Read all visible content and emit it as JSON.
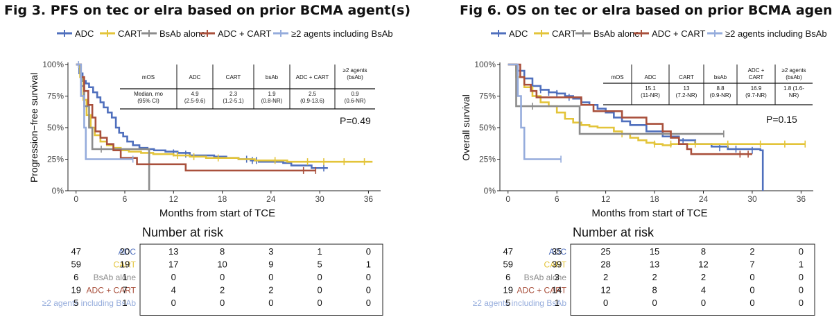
{
  "figures": [
    {
      "title": "Fig 3. PFS on tec or elra based on prior BCMA agent(s)"
    },
    {
      "title": "Fig 6. OS on tec or elra based on prior BCMA agent(s)"
    }
  ],
  "colors": {
    "ADC": "#4f6fbd",
    "CART": "#e3c43a",
    "BsAb alone": "#8c8c8c",
    "ADC + CART": "#a9503c",
    "agents2": "#95acdc"
  },
  "chart_data": [
    {
      "type": "line",
      "subtype": "kaplan-meier",
      "title": "Fig 3. PFS on tec or elra based on prior BCMA agent(s)",
      "xlabel": "Months from start of TCE",
      "ylabel": "Progression−free survival",
      "xlim": [
        -1,
        37.5
      ],
      "ylim": [
        0,
        1
      ],
      "xticks": [
        0,
        6,
        12,
        18,
        24,
        30,
        36
      ],
      "yticks": [
        "0%",
        "25%",
        "50%",
        "75%",
        "100%"
      ],
      "legend": [
        "ADC",
        "CART",
        "BsAb alone",
        "ADC + CART",
        "≥2 agents including BsAb"
      ],
      "legend_position": "top",
      "pvalue": "P=0.49",
      "inset_table": {
        "header": [
          "mOS",
          "ADC",
          "CART",
          "bsAb",
          "ADC + CART",
          "≥2 agents\n(bsAb)"
        ],
        "row": [
          "Median, mo\n(95% CI)",
          "4.9\n(2.5-9.6)",
          "2.3\n(1.2-5.1)",
          "1.9\n(0.8-NR)",
          "2.5\n(0.9-13.6)",
          "0.9\n(0.6-NR)"
        ]
      },
      "series": [
        {
          "name": "ADC",
          "key": "ADC",
          "points": [
            [
              0,
              1
            ],
            [
              0.4,
              0.93
            ],
            [
              0.8,
              0.87
            ],
            [
              1.2,
              0.85
            ],
            [
              1.6,
              0.82
            ],
            [
              2.1,
              0.78
            ],
            [
              2.6,
              0.74
            ],
            [
              3,
              0.7
            ],
            [
              3.4,
              0.66
            ],
            [
              3.9,
              0.62
            ],
            [
              4.4,
              0.58
            ],
            [
              4.9,
              0.5
            ],
            [
              5.3,
              0.46
            ],
            [
              5.8,
              0.43
            ],
            [
              6.3,
              0.39
            ],
            [
              7,
              0.36
            ],
            [
              7.8,
              0.34
            ],
            [
              8.8,
              0.33
            ],
            [
              9.6,
              0.32
            ],
            [
              11,
              0.31
            ],
            [
              12.5,
              0.3
            ],
            [
              14,
              0.28
            ],
            [
              17,
              0.27
            ],
            [
              18.5,
              0.26
            ],
            [
              20,
              0.25
            ],
            [
              21.5,
              0.24
            ],
            [
              22.5,
              0.23
            ],
            [
              25.5,
              0.22
            ],
            [
              26.5,
              0.2
            ],
            [
              29,
              0.18
            ],
            [
              31,
              0.18
            ]
          ],
          "censors": [
            [
              12,
              0.3
            ],
            [
              13.5,
              0.29
            ],
            [
              21,
              0.25
            ],
            [
              21.7,
              0.24
            ],
            [
              22.2,
              0.24
            ],
            [
              30.5,
              0.18
            ]
          ]
        },
        {
          "name": "CART",
          "key": "CART",
          "points": [
            [
              0,
              1
            ],
            [
              0.5,
              0.9
            ],
            [
              0.9,
              0.72
            ],
            [
              1.3,
              0.6
            ],
            [
              1.8,
              0.5
            ],
            [
              2.3,
              0.44
            ],
            [
              3,
              0.39
            ],
            [
              3.8,
              0.36
            ],
            [
              4.6,
              0.34
            ],
            [
              5.5,
              0.32
            ],
            [
              6.5,
              0.31
            ],
            [
              8,
              0.3
            ],
            [
              9.5,
              0.29
            ],
            [
              12,
              0.28
            ],
            [
              14,
              0.27
            ],
            [
              16,
              0.26
            ],
            [
              18,
              0.26
            ],
            [
              20,
              0.25
            ],
            [
              22,
              0.24
            ],
            [
              24,
              0.24
            ],
            [
              26,
              0.23
            ],
            [
              36.5,
              0.23
            ]
          ],
          "censors": [
            [
              12.5,
              0.28
            ],
            [
              14.5,
              0.27
            ],
            [
              17.5,
              0.26
            ],
            [
              24.5,
              0.24
            ],
            [
              28.5,
              0.23
            ],
            [
              30.5,
              0.23
            ],
            [
              33,
              0.23
            ],
            [
              35.5,
              0.23
            ]
          ]
        },
        {
          "name": "BsAb alone",
          "key": "BsAb alone",
          "points": [
            [
              0,
              1
            ],
            [
              0.6,
              0.83
            ],
            [
              1,
              0.67
            ],
            [
              1.6,
              0.5
            ],
            [
              2,
              0.33
            ],
            [
              8.8,
              0.33
            ],
            [
              9,
              0
            ]
          ],
          "censors": [
            [
              3.1,
              0.33
            ]
          ]
        },
        {
          "name": "ADC + CART",
          "key": "ADC + CART",
          "points": [
            [
              0,
              1
            ],
            [
              0.6,
              0.9
            ],
            [
              1,
              0.79
            ],
            [
              1.5,
              0.68
            ],
            [
              2,
              0.58
            ],
            [
              2.4,
              0.47
            ],
            [
              3,
              0.42
            ],
            [
              3.8,
              0.37
            ],
            [
              4.6,
              0.32
            ],
            [
              5.5,
              0.26
            ],
            [
              7.5,
              0.21
            ],
            [
              9.5,
              0.21
            ],
            [
              13.5,
              0.16
            ],
            [
              29.5,
              0.16
            ]
          ],
          "censors": [
            [
              28,
              0.16
            ],
            [
              29.5,
              0.16
            ]
          ]
        },
        {
          "name": "≥2 agents including BsAb",
          "key": "agents2",
          "points": [
            [
              0,
              1
            ],
            [
              0.6,
              0.75
            ],
            [
              1,
              0.5
            ],
            [
              1.2,
              0.25
            ],
            [
              7,
              0.25
            ]
          ],
          "censors": [
            [
              0.3,
              1
            ],
            [
              7,
              0.25
            ]
          ]
        }
      ]
    },
    {
      "type": "line",
      "subtype": "kaplan-meier",
      "title": "Fig 6. OS on tec or elra based on prior BCMA agent(s)",
      "xlabel": "Months from start of TCE",
      "ylabel": "Overall survival",
      "xlim": [
        -1,
        37.5
      ],
      "ylim": [
        0,
        1
      ],
      "xticks": [
        0,
        6,
        12,
        18,
        24,
        30,
        36
      ],
      "yticks": [
        "0%",
        "25%",
        "50%",
        "75%",
        "100%"
      ],
      "legend": [
        "ADC",
        "CART",
        "BsAb alone",
        "ADC + CART",
        "≥2 agents including BsAb"
      ],
      "legend_position": "top",
      "pvalue": "P=0.15",
      "inset_table": {
        "header": [
          "mOS",
          "ADC",
          "CART",
          "bsAb",
          "ADC +\nCART",
          "≥2 agents\n(bsAb)"
        ],
        "row": [
          "",
          "15.1\n(11-NR)",
          "13\n(7.2-NR)",
          "8.8\n(0.9-NR)",
          "16.9\n(9.7-NR)",
          "1.8  (1.6-\nNR)"
        ]
      },
      "series": [
        {
          "name": "ADC",
          "key": "ADC",
          "points": [
            [
              0,
              1
            ],
            [
              1,
              0.95
            ],
            [
              2,
              0.89
            ],
            [
              3,
              0.83
            ],
            [
              4,
              0.8
            ],
            [
              5,
              0.78
            ],
            [
              6,
              0.77
            ],
            [
              7,
              0.75
            ],
            [
              8,
              0.73
            ],
            [
              9,
              0.7
            ],
            [
              10,
              0.68
            ],
            [
              11,
              0.65
            ],
            [
              12,
              0.62
            ],
            [
              13,
              0.58
            ],
            [
              14,
              0.55
            ],
            [
              15,
              0.52
            ],
            [
              17,
              0.47
            ],
            [
              19,
              0.43
            ],
            [
              21,
              0.4
            ],
            [
              23,
              0.37
            ],
            [
              25,
              0.35
            ],
            [
              27,
              0.33
            ],
            [
              31,
              0.32
            ],
            [
              31.3,
              0
            ]
          ],
          "censors": [
            [
              4,
              0.8
            ],
            [
              5,
              0.78
            ],
            [
              6,
              0.77
            ],
            [
              7.5,
              0.74
            ],
            [
              21.5,
              0.39
            ],
            [
              26,
              0.34
            ],
            [
              28,
              0.33
            ],
            [
              30,
              0.32
            ]
          ]
        },
        {
          "name": "CART",
          "key": "CART",
          "points": [
            [
              0,
              1
            ],
            [
              1,
              0.9
            ],
            [
              2,
              0.82
            ],
            [
              3,
              0.75
            ],
            [
              4,
              0.7
            ],
            [
              5,
              0.67
            ],
            [
              6,
              0.62
            ],
            [
              7,
              0.57
            ],
            [
              8,
              0.54
            ],
            [
              9,
              0.52
            ],
            [
              10,
              0.51
            ],
            [
              11,
              0.5
            ],
            [
              13,
              0.47
            ],
            [
              14,
              0.45
            ],
            [
              15,
              0.42
            ],
            [
              16,
              0.4
            ],
            [
              17,
              0.38
            ],
            [
              18,
              0.37
            ],
            [
              19,
              0.36
            ],
            [
              20,
              0.37
            ],
            [
              36.5,
              0.37
            ]
          ],
          "censors": [
            [
              14,
              0.45
            ],
            [
              18,
              0.37
            ],
            [
              20,
              0.37
            ],
            [
              23,
              0.37
            ],
            [
              27,
              0.37
            ],
            [
              31,
              0.37
            ],
            [
              34,
              0.37
            ],
            [
              36.5,
              0.37
            ]
          ]
        },
        {
          "name": "BsAb alone",
          "key": "BsAb alone",
          "points": [
            [
              0,
              1
            ],
            [
              1,
              0.67
            ],
            [
              8.5,
              0.67
            ],
            [
              8.8,
              0.45
            ],
            [
              26.5,
              0.45
            ]
          ],
          "censors": [
            [
              3,
              0.67
            ],
            [
              26.5,
              0.45
            ]
          ]
        },
        {
          "name": "ADC + CART",
          "key": "ADC + CART",
          "points": [
            [
              0,
              1
            ],
            [
              1.5,
              0.9
            ],
            [
              2,
              0.84
            ],
            [
              2.8,
              0.79
            ],
            [
              3.5,
              0.74
            ],
            [
              8,
              0.74
            ],
            [
              9,
              0.68
            ],
            [
              10.5,
              0.63
            ],
            [
              14,
              0.58
            ],
            [
              17,
              0.53
            ],
            [
              19,
              0.47
            ],
            [
              20,
              0.42
            ],
            [
              21,
              0.37
            ],
            [
              22,
              0.33
            ],
            [
              22.5,
              0.29
            ],
            [
              30,
              0.29
            ]
          ],
          "censors": [
            [
              28.5,
              0.29
            ],
            [
              29.5,
              0.29
            ]
          ]
        },
        {
          "name": "≥2 agents including BsAb",
          "key": "agents2",
          "points": [
            [
              0,
              1
            ],
            [
              1.2,
              0.75
            ],
            [
              1.6,
              0.5
            ],
            [
              2,
              0.25
            ],
            [
              6.5,
              0.25
            ]
          ],
          "censors": [
            [
              6.5,
              0.25
            ]
          ]
        }
      ]
    }
  ],
  "risk_tables": [
    {
      "title": "Number at risk",
      "rows": [
        {
          "label": "ADC",
          "key": "ADC",
          "values": [
            "47",
            "20",
            "13",
            "8",
            "3",
            "1",
            "0"
          ]
        },
        {
          "label": "CART",
          "key": "CART",
          "values": [
            "59",
            "19",
            "17",
            "10",
            "9",
            "5",
            "1"
          ]
        },
        {
          "label": "BsAb alone",
          "key": "BsAb alone",
          "values": [
            "6",
            "1",
            "0",
            "0",
            "0",
            "0",
            "0"
          ]
        },
        {
          "label": "ADC + CART",
          "key": "ADC + CART",
          "values": [
            "19",
            "7",
            "4",
            "2",
            "2",
            "0",
            "0"
          ]
        },
        {
          "label": "≥2 agents including BsAb",
          "key": "agents2",
          "values": [
            "5",
            "1",
            "0",
            "0",
            "0",
            "0",
            "0"
          ]
        }
      ]
    },
    {
      "title": "Number at risk",
      "rows": [
        {
          "label": "ADC",
          "key": "ADC",
          "values": [
            "47",
            "35",
            "25",
            "15",
            "8",
            "2",
            "0"
          ]
        },
        {
          "label": "CART",
          "key": "CART",
          "values": [
            "59",
            "39",
            "28",
            "13",
            "12",
            "7",
            "1"
          ]
        },
        {
          "label": "BsAb alone",
          "key": "BsAb alone",
          "values": [
            "6",
            "3",
            "2",
            "2",
            "2",
            "0",
            "0"
          ]
        },
        {
          "label": "ADC + CART",
          "key": "ADC + CART",
          "values": [
            "19",
            "14",
            "12",
            "8",
            "4",
            "0",
            "0"
          ]
        },
        {
          "label": "≥2 agents including BsAb",
          "key": "agents2",
          "values": [
            "5",
            "1",
            "0",
            "0",
            "0",
            "0",
            "0"
          ]
        }
      ]
    }
  ]
}
